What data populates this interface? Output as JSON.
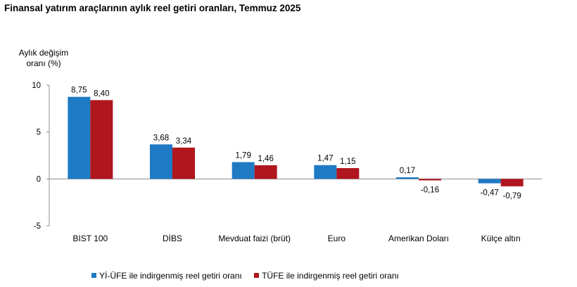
{
  "title": "Finansal yatırım araçlarının aylık reel getiri oranları, Temmuz 2025",
  "chart_data": {
    "type": "bar",
    "title": "Finansal yatırım araçlarının aylık reel getiri oranları, Temmuz 2025",
    "ylabel_lines": [
      "Aylık değişim",
      "oranı (%)"
    ],
    "xlabel": "",
    "ylim": [
      -5,
      10
    ],
    "yticks": [
      10,
      5,
      0,
      -5
    ],
    "ytick_labels": [
      "10",
      "5",
      "0",
      "-5"
    ],
    "grid": false,
    "legend_position": "bottom",
    "categories": [
      "BIST 100",
      "DİBS",
      "Mevduat faizi (brüt)",
      "Euro",
      "Amerikan Doları",
      "Külçe altın"
    ],
    "series": [
      {
        "name": "Yİ-ÜFE ile indirgenmiş reel getiri oranı",
        "color": "#1f7ac4",
        "values": [
          8.75,
          3.68,
          1.79,
          1.47,
          0.17,
          -0.47
        ],
        "labels": [
          "8,75",
          "3,68",
          "1,79",
          "1,47",
          "0,17",
          "-0,47"
        ]
      },
      {
        "name": "TÜFE ile indirgenmiş reel getiri oranı",
        "color": "#b0161e",
        "values": [
          8.4,
          3.34,
          1.46,
          1.15,
          -0.16,
          -0.79
        ],
        "labels": [
          "8,40",
          "3,34",
          "1,46",
          "1,15",
          "-0,16",
          "-0,79"
        ]
      }
    ]
  }
}
